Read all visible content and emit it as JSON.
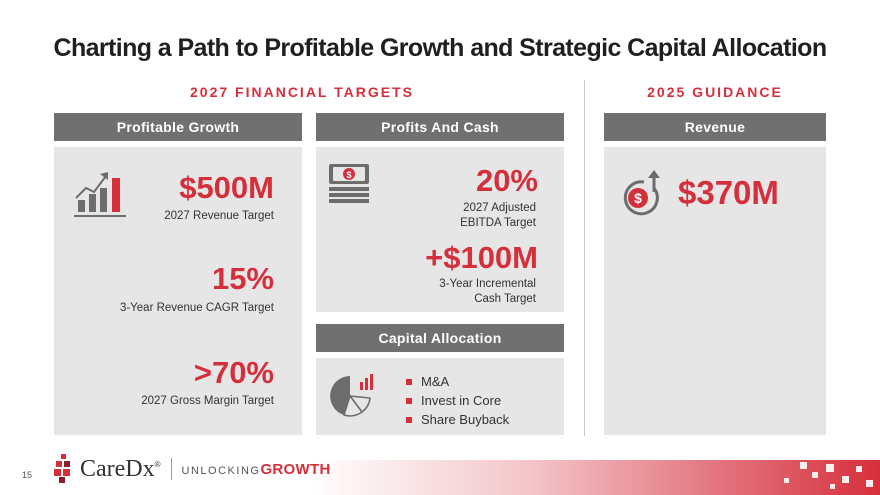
{
  "title": "Charting a Path to Profitable Growth and Strategic Capital Allocation",
  "sections": {
    "targets_title": "2027 FINANCIAL TARGETS",
    "guidance_title": "2025 GUIDANCE"
  },
  "profitable_growth": {
    "header": "Profitable Growth",
    "revenue_value": "$500M",
    "revenue_label": "2027 Revenue Target",
    "cagr_value": "15%",
    "cagr_label": "3-Year Revenue CAGR Target",
    "margin_value": ">70%",
    "margin_label": "2027 Gross Margin Target",
    "icon": "bar-chart-growth-icon"
  },
  "profits_cash": {
    "header": "Profits And Cash",
    "ebitda_value": "20%",
    "ebitda_label_1": "2027 Adjusted",
    "ebitda_label_2": "EBITDA Target",
    "cash_value": "+$100M",
    "cash_label_1": "3-Year Incremental",
    "cash_label_2": "Cash Target",
    "icon": "cash-stack-icon"
  },
  "capital_allocation": {
    "header": "Capital Allocation",
    "items": [
      "M&A",
      "Invest in Core",
      "Share Buyback"
    ],
    "icon": "pie-chart-icon"
  },
  "guidance": {
    "header": "Revenue",
    "value": "$370M",
    "icon": "dollar-growth-icon"
  },
  "footer": {
    "page_number": "15",
    "logo_text": "CareDx",
    "logo_mark": "®",
    "tagline_prefix": "UNLOCKING",
    "tagline_emphasis": "GROWTH"
  },
  "colors": {
    "accent": "#d62f3c",
    "bar": "#707070",
    "panel": "#e6e6e6"
  }
}
